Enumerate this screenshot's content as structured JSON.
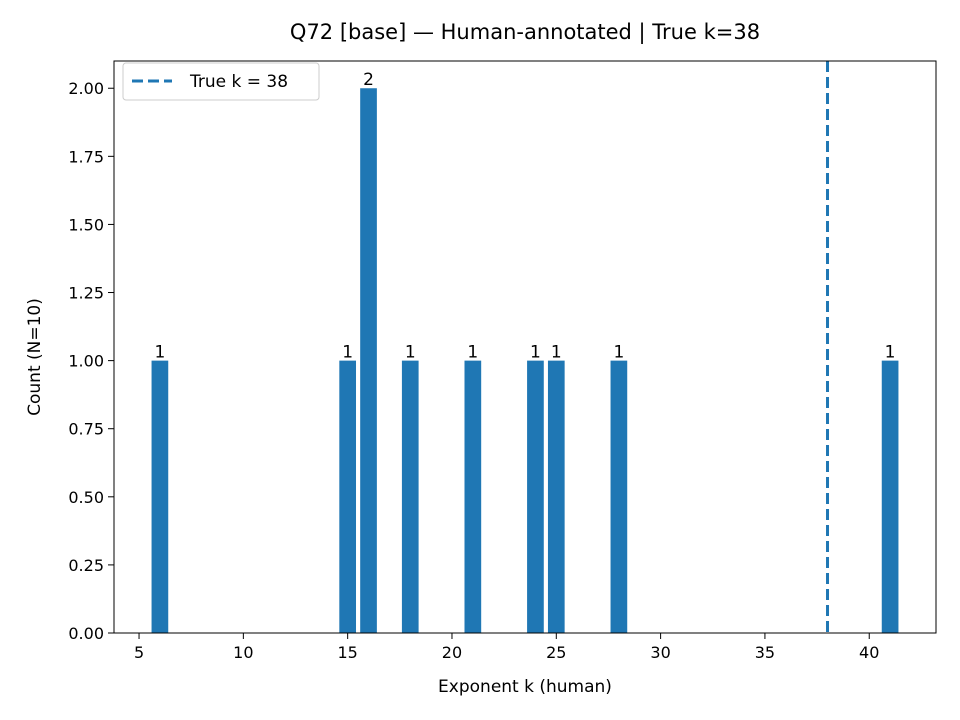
{
  "chart_data": {
    "type": "bar",
    "title": "Q72 [base] — Human-annotated | True k=38",
    "xlabel": "Exponent k (human)",
    "ylabel": "Count (N=10)",
    "x": [
      6,
      15,
      16,
      18,
      21,
      24,
      25,
      28,
      41
    ],
    "values": [
      1,
      1,
      2,
      1,
      1,
      1,
      1,
      1,
      1
    ],
    "data_labels": [
      "1",
      "1",
      "2",
      "1",
      "1",
      "1",
      "1",
      "1",
      "1"
    ],
    "xlim": [
      3.8,
      43.2
    ],
    "ylim": [
      0,
      2.1
    ],
    "xticks": [
      5,
      10,
      15,
      20,
      25,
      30,
      35,
      40
    ],
    "xtick_labels": [
      "5",
      "10",
      "15",
      "20",
      "25",
      "30",
      "35",
      "40"
    ],
    "yticks": [
      0,
      0.25,
      0.5,
      0.75,
      1.0,
      1.25,
      1.5,
      1.75,
      2.0
    ],
    "ytick_labels": [
      "0.00",
      "0.25",
      "0.50",
      "0.75",
      "1.00",
      "1.25",
      "1.50",
      "1.75",
      "2.00"
    ],
    "bar_width": 0.8,
    "bar_color": "#1f77b4",
    "reference_line": {
      "x": 38,
      "label": "True k = 38",
      "color": "#1f77b4",
      "style": "dashed"
    },
    "legend": {
      "position": "top-left",
      "entries": [
        "True k = 38"
      ]
    },
    "grid": false
  }
}
